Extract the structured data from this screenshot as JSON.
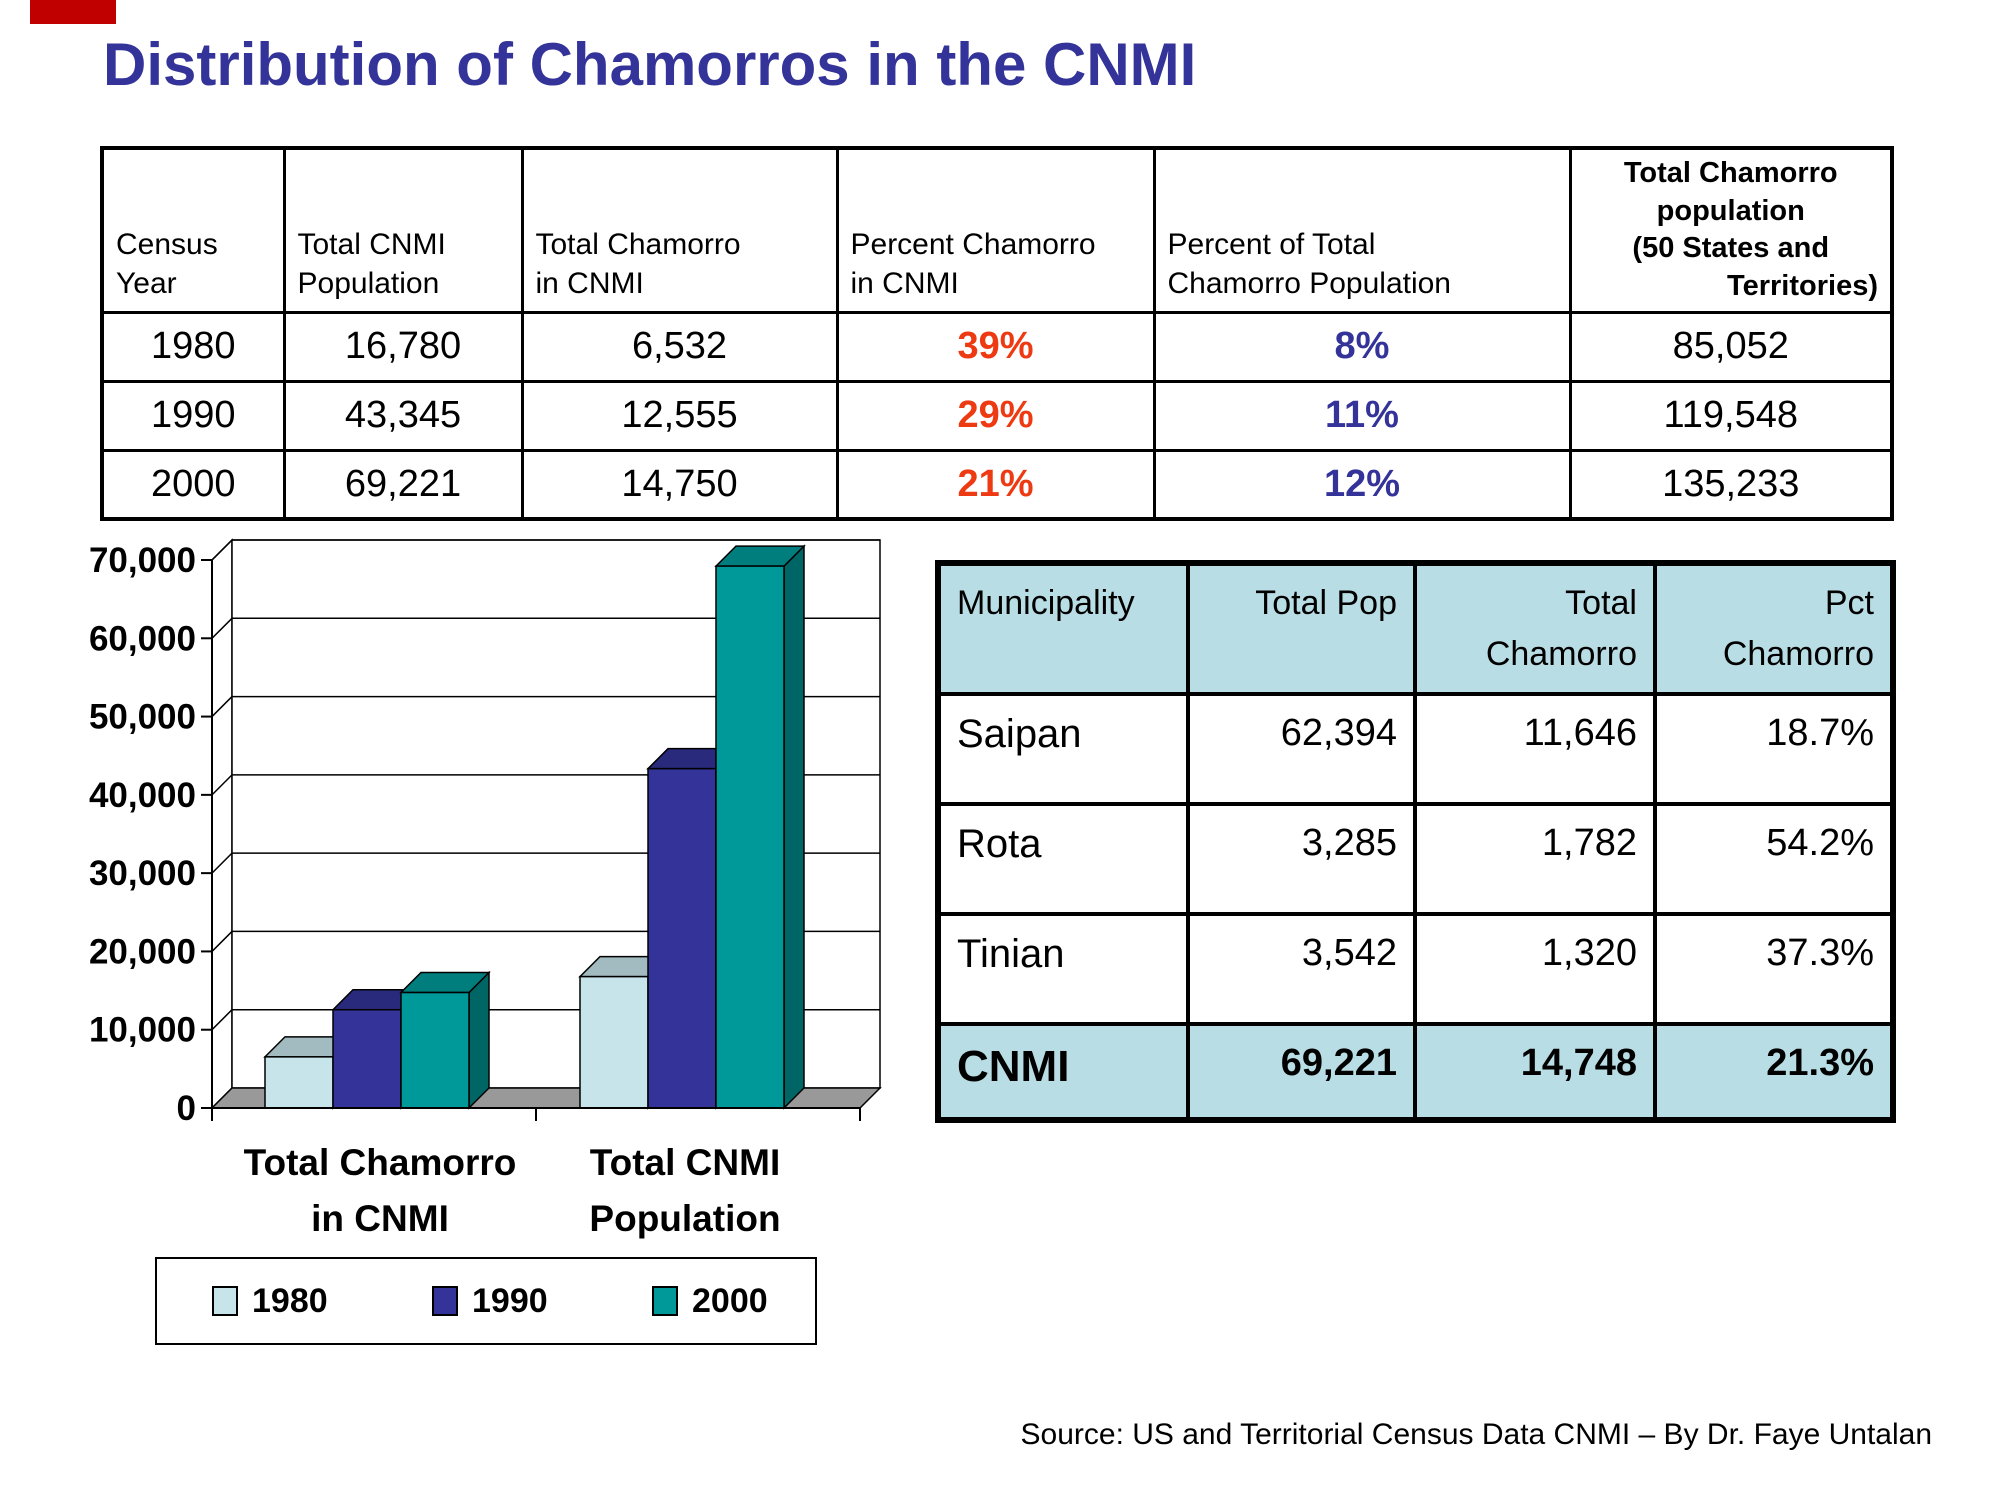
{
  "slide": {
    "title": "Distribution of Chamorros in the CNMI",
    "source": "Source: US and Territorial Census Data CNMI – By Dr. Faye Untalan"
  },
  "colors": {
    "title_blue": "#333399",
    "percent_red": "#ee3a12",
    "percent_blue": "#333399",
    "table_accent_bg": "#b8dde4",
    "accent_red": "#c00000",
    "floor_gray": "#999999"
  },
  "census_table": {
    "headers": [
      [
        "Census",
        "Year"
      ],
      [
        "Total CNMI",
        "Population"
      ],
      [
        "Total Chamorro",
        "in CNMI"
      ],
      [
        "Percent Chamorro",
        "in CNMI"
      ],
      [
        "Percent of Total",
        "Chamorro Population"
      ],
      [
        "Total Chamorro",
        "population",
        "(50 States  and",
        "Territories)"
      ]
    ],
    "rows": [
      [
        "1980",
        "16,780",
        "6,532",
        "39%",
        "8%",
        "85,052"
      ],
      [
        "1990",
        "43,345",
        "12,555",
        "29%",
        "11%",
        "119,548"
      ],
      [
        "2000",
        "69,221",
        "14,750",
        "21%",
        "12%",
        "135,233"
      ]
    ]
  },
  "chart_data": {
    "type": "bar",
    "style": "3d-clustered",
    "title": "",
    "xlabel": "",
    "ylabel": "",
    "categories": [
      [
        "Total Chamorro",
        "in CNMI"
      ],
      [
        "Total CNMI",
        "Population"
      ]
    ],
    "series": [
      {
        "name": "1980",
        "color": "#c6e4ea",
        "values": [
          6532,
          16780
        ]
      },
      {
        "name": "1990",
        "color": "#333399",
        "values": [
          12555,
          43345
        ]
      },
      {
        "name": "2000",
        "color": "#009999",
        "values": [
          14750,
          69221
        ]
      }
    ],
    "ylim": [
      0,
      70000
    ],
    "ytick_step": 10000,
    "ytick_labels": [
      "0",
      "10,000",
      "20,000",
      "30,000",
      "40,000",
      "50,000",
      "60,000",
      "70,000"
    ],
    "grid": true,
    "legend_position": "bottom"
  },
  "municipality_table": {
    "headers": [
      [
        "Municipality"
      ],
      [
        "Total Pop"
      ],
      [
        "Total",
        "Chamorro"
      ],
      [
        "Pct",
        "Chamorro"
      ]
    ],
    "rows": [
      [
        "Saipan",
        "62,394",
        "11,646",
        "18.7%"
      ],
      [
        "Rota",
        "3,285",
        "1,782",
        "54.2%"
      ],
      [
        "Tinian",
        "3,542",
        "1,320",
        "37.3%"
      ],
      [
        "CNMI",
        "69,221",
        "14,748",
        "21.3%"
      ]
    ]
  }
}
